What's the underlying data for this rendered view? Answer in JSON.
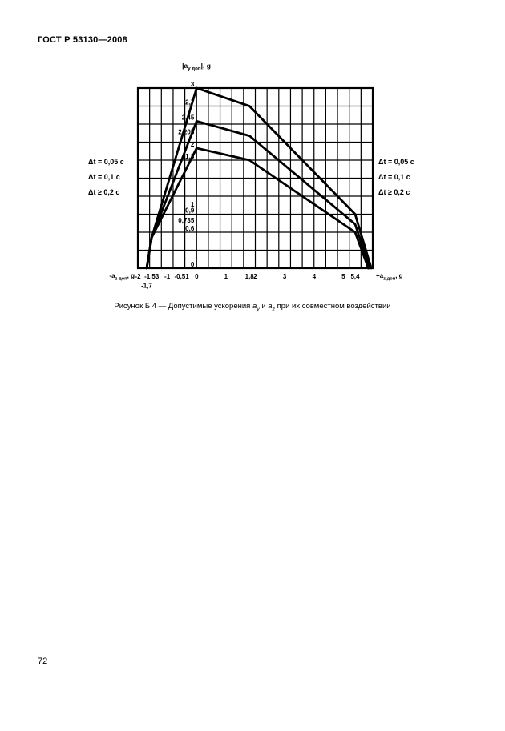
{
  "page": {
    "header": "ГОСТ Р 53130—2008",
    "page_number": "72"
  },
  "legend": {
    "items": [
      "Δt = 0,05 с",
      "Δt = 0,1 с",
      "Δt ≥ 0,2 с"
    ]
  },
  "caption": {
    "prefix": "Рисунок Б.4 — Допустимые ускорения ",
    "ay_base": "a",
    "ay_sub": "у",
    "mid": " и ",
    "az_base": "a",
    "az_sub": "z",
    "suffix": " при их совместном воздействии"
  },
  "chart_data": {
    "type": "line",
    "title": "Допустимые ускорения ay и az при их совместном воздействии",
    "y_axis_title": {
      "prefix": "|a",
      "sub": "у доп",
      "suffix": "|, g"
    },
    "x_axis_left_label": {
      "prefix": "-a",
      "sub": "z доп",
      "suffix": ", g"
    },
    "x_axis_right_label": {
      "prefix": "+a",
      "sub": "z доп",
      "suffix": ", g"
    },
    "xlim": [
      -2,
      6
    ],
    "ylim": [
      0,
      3
    ],
    "grid": {
      "on": true,
      "dx": 0.4,
      "dy": 0.3
    },
    "legend_position": "both-sides",
    "x_ticks": [
      {
        "v": -2,
        "label": "-2"
      },
      {
        "v": -1.53,
        "label": "-1,53"
      },
      {
        "v": -1,
        "label": "-1"
      },
      {
        "v": -0.51,
        "label": "-0,51"
      },
      {
        "v": 0,
        "label": "0"
      },
      {
        "v": 1,
        "label": "1"
      },
      {
        "v": 1.8,
        "label": "1,8"
      },
      {
        "v": 2,
        "label": "2"
      },
      {
        "v": 3,
        "label": "3"
      },
      {
        "v": 4,
        "label": "4"
      },
      {
        "v": 5,
        "label": "5"
      },
      {
        "v": 5.4,
        "label": "5,4"
      },
      {
        "v": -1.7,
        "label": "-1,7",
        "row": 2
      }
    ],
    "y_ticks": [
      {
        "v": 3,
        "label": "3"
      },
      {
        "v": 2.7,
        "label": "2,7"
      },
      {
        "v": 2.45,
        "label": "2,45"
      },
      {
        "v": 2.205,
        "label": "2,205"
      },
      {
        "v": 2,
        "label": "2"
      },
      {
        "v": 1.8,
        "label": "1,8"
      },
      {
        "v": 1,
        "label": "1"
      },
      {
        "v": 0.9,
        "label": "0,9"
      },
      {
        "v": 0.735,
        "label": "0,735"
      },
      {
        "v": 0.6,
        "label": "0,6"
      },
      {
        "v": 0,
        "label": "0"
      }
    ],
    "series": [
      {
        "name": "Δt = 0,05 с",
        "points": [
          [
            -1.7,
            0
          ],
          [
            -1.53,
            0.51
          ],
          [
            0,
            3
          ],
          [
            1.8,
            2.7
          ],
          [
            5.4,
            0.9
          ],
          [
            5.95,
            0
          ]
        ]
      },
      {
        "name": "Δt = 0,1 с",
        "points": [
          [
            -1.7,
            0
          ],
          [
            -1.53,
            0.51
          ],
          [
            0,
            2.45
          ],
          [
            1.8,
            2.205
          ],
          [
            5.4,
            0.735
          ],
          [
            5.9,
            0
          ]
        ]
      },
      {
        "name": "Δt ≥ 0,2 с",
        "points": [
          [
            -1.7,
            0
          ],
          [
            -1.53,
            0.51
          ],
          [
            0,
            2
          ],
          [
            1.8,
            1.8
          ],
          [
            5.4,
            0.6
          ],
          [
            5.85,
            0
          ]
        ]
      }
    ],
    "line_color": "#000000",
    "background": "#ffffff"
  }
}
